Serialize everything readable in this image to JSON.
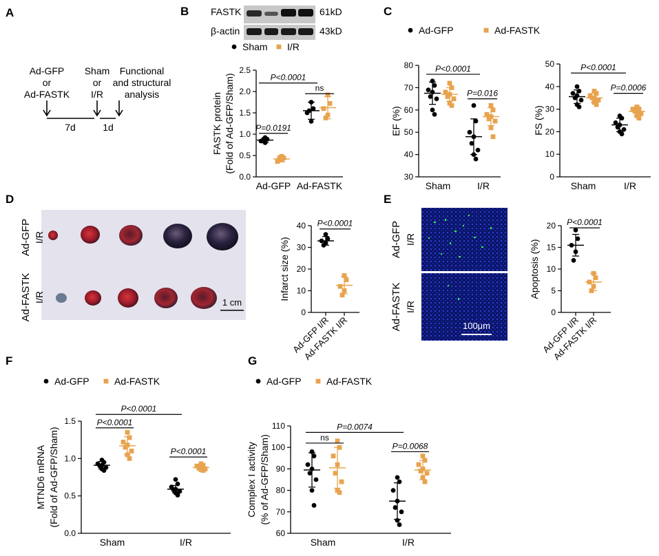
{
  "colors": {
    "gfp": "#000000",
    "fastk": "#E8A34E",
    "grey_bar": "#9a9a9a"
  },
  "panel_labels": [
    "A",
    "B",
    "C",
    "D",
    "E",
    "F",
    "G"
  ],
  "panelA": {
    "row1": [
      "Ad-GFP",
      "or",
      "Ad-FASTK"
    ],
    "row2": [
      "Sham",
      "or",
      "I/R"
    ],
    "row3": [
      "Functional",
      "and structural",
      "analysis"
    ],
    "t1": "7d",
    "t2": "1d"
  },
  "panelB_blot": {
    "band1": "FASTK",
    "band1_kd": "61kD",
    "band2": "β-actin",
    "band2_kd": "43kD"
  },
  "panelD_photo": {
    "row_labels": [
      "Ad-GFP",
      "Ad-FASTK"
    ],
    "condition": "I/R",
    "scale": "1 cm"
  },
  "panelE_micro": {
    "row_labels": [
      "Ad-GFP",
      "Ad-FASTK"
    ],
    "condition": "I/R",
    "scale": "100μm"
  },
  "chart_data": [
    {
      "id": "B",
      "type": "scatter",
      "ylabel": [
        "FASTK protein",
        "(Fold of Ad-GFP/Sham)"
      ],
      "ylim": [
        0,
        2.5
      ],
      "yticks": [
        0.0,
        0.5,
        1.0,
        1.5,
        2.0,
        2.5
      ],
      "categories": [
        "Ad-GFP",
        "Ad-FASTK"
      ],
      "legend": [
        {
          "name": "Sham",
          "marker": "circle",
          "color": "#000000"
        },
        {
          "name": "I/R",
          "marker": "square",
          "color": "#E8A34E"
        }
      ],
      "groups": [
        {
          "cat": 0,
          "series": "Sham",
          "marker": "circle",
          "color": "#000000",
          "mean": 0.86,
          "sd": 0.06,
          "points": [
            0.92,
            0.88,
            0.84,
            0.8,
            0.86
          ]
        },
        {
          "cat": 0,
          "series": "I/R",
          "marker": "square",
          "color": "#E8A34E",
          "mean": 0.42,
          "sd": 0.07,
          "points": [
            0.48,
            0.44,
            0.36,
            0.4,
            0.45
          ]
        },
        {
          "cat": 1,
          "series": "Sham",
          "marker": "circle",
          "color": "#000000",
          "mean": 1.55,
          "sd": 0.2,
          "points": [
            1.75,
            1.6,
            1.5,
            1.3,
            1.55
          ]
        },
        {
          "cat": 1,
          "series": "I/R",
          "marker": "square",
          "color": "#E8A34E",
          "mean": 1.62,
          "sd": 0.26,
          "points": [
            1.92,
            1.72,
            1.6,
            1.45,
            1.38
          ]
        }
      ],
      "brackets": [
        {
          "a": 0,
          "b": 2,
          "y": 2.2,
          "label": "P<0.0001"
        },
        {
          "a": 2,
          "b": 3,
          "y": 1.95,
          "label": "ns"
        },
        {
          "a": 0,
          "b": 1,
          "y": 1.02,
          "label": "P=0.0191"
        }
      ]
    },
    {
      "id": "C1",
      "type": "scatter",
      "ylabel": [
        "EF (%)"
      ],
      "ylim": [
        30,
        80
      ],
      "yticks": [
        30,
        40,
        50,
        60,
        70,
        80
      ],
      "categories": [
        "Sham",
        "I/R"
      ],
      "legend": [
        {
          "name": "Ad-GFP",
          "marker": "circle",
          "color": "#000000"
        },
        {
          "name": "Ad-FASTK",
          "marker": "square",
          "color": "#E8A34E"
        }
      ],
      "groups": [
        {
          "cat": 0,
          "series": "Ad-GFP",
          "marker": "circle",
          "color": "#000000",
          "mean": 67.5,
          "sd": 5,
          "points": [
            73,
            71,
            69,
            68,
            66,
            65,
            60,
            58
          ]
        },
        {
          "cat": 0,
          "series": "Ad-FASTK",
          "marker": "square",
          "color": "#E8A34E",
          "mean": 67,
          "sd": 3,
          "points": [
            72,
            70,
            68,
            67,
            66,
            65,
            63,
            62
          ]
        },
        {
          "cat": 1,
          "series": "Ad-GFP",
          "marker": "circle",
          "color": "#000000",
          "mean": 48,
          "sd": 8,
          "points": [
            62,
            55,
            50,
            48,
            45,
            42,
            40,
            38
          ]
        },
        {
          "cat": 1,
          "series": "Ad-FASTK",
          "marker": "square",
          "color": "#E8A34E",
          "mean": 57,
          "sd": 4,
          "points": [
            62,
            60,
            58,
            57,
            56,
            55,
            52,
            48
          ]
        }
      ],
      "brackets": [
        {
          "a": 0,
          "b": 2,
          "y": 76,
          "label": "P<0.0001"
        },
        {
          "a": 2,
          "b": 3,
          "y": 65,
          "label": "P=0.016"
        }
      ]
    },
    {
      "id": "C2",
      "type": "scatter",
      "ylabel": [
        "FS (%)"
      ],
      "ylim": [
        0,
        50
      ],
      "yticks": [
        0,
        10,
        20,
        30,
        40,
        50
      ],
      "categories": [
        "Sham",
        "I/R"
      ],
      "legend": [],
      "groups": [
        {
          "cat": 0,
          "series": "Ad-GFP",
          "marker": "circle",
          "color": "#000000",
          "mean": 35.5,
          "sd": 3,
          "points": [
            40,
            38,
            37,
            36,
            35,
            34,
            32,
            31
          ]
        },
        {
          "cat": 0,
          "series": "Ad-FASTK",
          "marker": "square",
          "color": "#E8A34E",
          "mean": 35,
          "sd": 2,
          "points": [
            38,
            37,
            36,
            35,
            35,
            34,
            33,
            32
          ]
        },
        {
          "cat": 1,
          "series": "Ad-GFP",
          "marker": "circle",
          "color": "#000000",
          "mean": 23,
          "sd": 3,
          "points": [
            27,
            26,
            24,
            23,
            22,
            21,
            20,
            19
          ]
        },
        {
          "cat": 1,
          "series": "Ad-FASTK",
          "marker": "square",
          "color": "#E8A34E",
          "mean": 29,
          "sd": 2,
          "points": [
            31,
            30,
            30,
            29,
            29,
            28,
            27,
            26
          ]
        }
      ],
      "brackets": [
        {
          "a": 0,
          "b": 2,
          "y": 46,
          "label": "P<0.0001"
        },
        {
          "a": 2,
          "b": 3,
          "y": 37,
          "label": "P=0.0006"
        }
      ]
    },
    {
      "id": "D",
      "type": "scatter",
      "ylabel": [
        "Infarct size (%)"
      ],
      "ylim": [
        0,
        40
      ],
      "yticks": [
        0,
        10,
        20,
        30,
        40
      ],
      "categories": [
        "Ad-GFP I/R",
        "Ad-FASTK I/R"
      ],
      "legend": [],
      "groups": [
        {
          "cat": 0,
          "series": "Ad-GFP I/R",
          "marker": "circle",
          "color": "#000000",
          "mean": 33,
          "sd": 2,
          "points": [
            36,
            34,
            33,
            32,
            31
          ]
        },
        {
          "cat": 1,
          "series": "Ad-FASTK I/R",
          "marker": "square",
          "color": "#E8A34E",
          "mean": 12.5,
          "sd": 4,
          "points": [
            17,
            15,
            12,
            10,
            8
          ]
        }
      ],
      "brackets": [
        {
          "a": 0,
          "b": 1,
          "y": 38.5,
          "label": "P<0.0001"
        }
      ]
    },
    {
      "id": "E",
      "type": "scatter",
      "ylabel": [
        "Apoptosis (%)"
      ],
      "ylim": [
        0,
        20
      ],
      "yticks": [
        0,
        5,
        10,
        15,
        20
      ],
      "categories": [
        "Ad-GFP I/R",
        "Ad-FASTK I/R"
      ],
      "legend": [],
      "groups": [
        {
          "cat": 0,
          "series": "Ad-GFP I/R",
          "marker": "circle",
          "color": "#000000",
          "mean": 15.5,
          "sd": 2.5,
          "points": [
            19,
            17,
            15.5,
            14,
            12
          ]
        },
        {
          "cat": 1,
          "series": "Ad-FASTK I/R",
          "marker": "square",
          "color": "#E8A34E",
          "mean": 7,
          "sd": 2,
          "points": [
            9,
            8,
            7,
            6,
            5
          ]
        }
      ],
      "brackets": [
        {
          "a": 0,
          "b": 1,
          "y": 19.5,
          "label": "P<0.0001"
        }
      ]
    },
    {
      "id": "F",
      "type": "scatter",
      "ylabel": [
        "MTND6 mRNA",
        "(Fold of Ad-GFP/Sham)"
      ],
      "ylim": [
        0,
        1.5
      ],
      "yticks": [
        0.0,
        0.5,
        1.0,
        1.5
      ],
      "categories": [
        "Sham",
        "I/R"
      ],
      "legend": [
        {
          "name": "Ad-GFP",
          "marker": "circle",
          "color": "#000000"
        },
        {
          "name": "Ad-FASTK",
          "marker": "square",
          "color": "#E8A34E"
        }
      ],
      "groups": [
        {
          "cat": 0,
          "series": "Ad-GFP",
          "marker": "circle",
          "color": "#000000",
          "mean": 0.91,
          "sd": 0.05,
          "points": [
            0.98,
            0.95,
            0.93,
            0.91,
            0.9,
            0.88,
            0.86,
            0.84
          ]
        },
        {
          "cat": 0,
          "series": "Ad-FASTK",
          "marker": "square",
          "color": "#E8A34E",
          "mean": 1.17,
          "sd": 0.12,
          "points": [
            1.35,
            1.28,
            1.22,
            1.18,
            1.15,
            1.1,
            1.05,
            1.0
          ]
        },
        {
          "cat": 1,
          "series": "Ad-GFP",
          "marker": "circle",
          "color": "#000000",
          "mean": 0.59,
          "sd": 0.05,
          "points": [
            0.72,
            0.66,
            0.62,
            0.59,
            0.58,
            0.56,
            0.54,
            0.51
          ]
        },
        {
          "cat": 1,
          "series": "Ad-FASTK",
          "marker": "square",
          "color": "#E8A34E",
          "mean": 0.88,
          "sd": 0.03,
          "points": [
            0.93,
            0.91,
            0.9,
            0.88,
            0.87,
            0.86,
            0.85,
            0.84
          ]
        }
      ],
      "brackets": [
        {
          "a": 0,
          "b": 2,
          "y": 1.59,
          "label": "P<0.0001"
        },
        {
          "a": 0,
          "b": 1,
          "y": 1.41,
          "label": "P<0.0001"
        },
        {
          "a": 2,
          "b": 3,
          "y": 1.02,
          "label": "P<0.0001"
        }
      ]
    },
    {
      "id": "G",
      "type": "scatter",
      "ylabel": [
        "Complex I activity",
        "(% of Ad-GFP/Sham)"
      ],
      "ylim": [
        60,
        110
      ],
      "yticks": [
        60,
        70,
        80,
        90,
        100,
        110
      ],
      "categories": [
        "Sham",
        "I/R"
      ],
      "legend": [
        {
          "name": "Ad-GFP",
          "marker": "circle",
          "color": "#000000"
        },
        {
          "name": "Ad-FASTK",
          "marker": "square",
          "color": "#E8A34E"
        }
      ],
      "groups": [
        {
          "cat": 0,
          "series": "Ad-GFP",
          "marker": "circle",
          "color": "#000000",
          "mean": 89.5,
          "sd": 8,
          "points": [
            98,
            96,
            92,
            90,
            88,
            85,
            80,
            73
          ]
        },
        {
          "cat": 0,
          "series": "Ad-FASTK",
          "marker": "square",
          "color": "#E8A34E",
          "mean": 90.5,
          "sd": 9.5,
          "points": [
            103,
            100,
            96,
            92,
            88,
            84,
            80,
            79
          ]
        },
        {
          "cat": 1,
          "series": "Ad-GFP",
          "marker": "circle",
          "color": "#000000",
          "mean": 75,
          "sd": 8.5,
          "points": [
            86,
            84,
            80,
            75,
            72,
            70,
            66,
            64
          ]
        },
        {
          "cat": 1,
          "series": "Ad-FASTK",
          "marker": "square",
          "color": "#E8A34E",
          "mean": 89.5,
          "sd": 4.5,
          "points": [
            96,
            94,
            92,
            90,
            89,
            88,
            86,
            84
          ]
        }
      ],
      "brackets": [
        {
          "a": 0,
          "b": 2,
          "y": 107,
          "label": "P=0.0074"
        },
        {
          "a": 0,
          "b": 1,
          "y": 102,
          "label": "ns"
        },
        {
          "a": 2,
          "b": 3,
          "y": 98,
          "label": "P=0.0068"
        }
      ]
    }
  ]
}
